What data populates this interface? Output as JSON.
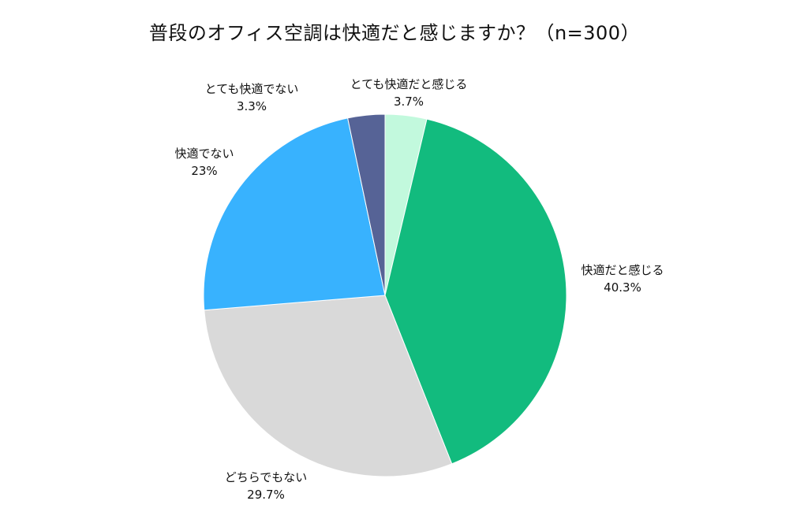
{
  "chart_data": {
    "type": "pie",
    "title": "普段のオフィス空調は快適だと感じますか？（n=300）",
    "slices": [
      {
        "label": "とても快適だと感じる",
        "value": 3.7,
        "value_label": "3.7%",
        "color": "#c2f9dd"
      },
      {
        "label": "快適だと感じる",
        "value": 40.3,
        "value_label": "40.3%",
        "color": "#12bb7e"
      },
      {
        "label": "どちらでもない",
        "value": 29.7,
        "value_label": "29.7%",
        "color": "#d9d9d9"
      },
      {
        "label": "快適でない",
        "value": 23,
        "value_label": "23%",
        "color": "#38b2fe"
      },
      {
        "label": "とても快適でない",
        "value": 3.3,
        "value_label": "3.3%",
        "color": "#566396"
      }
    ]
  }
}
